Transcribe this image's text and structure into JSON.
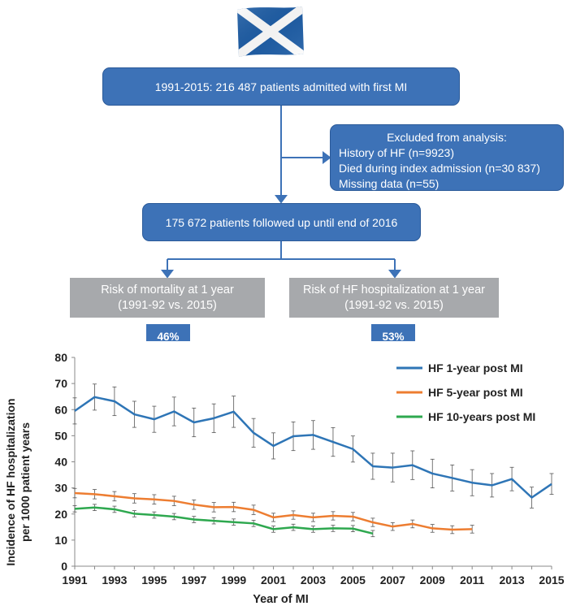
{
  "flow": {
    "top_box": "1991-2015: 216 487 patients admitted with first MI",
    "excluded": {
      "title": "Excluded from analysis:",
      "items": [
        "History of HF (n=9923)",
        "Died during index admission (n=30 837)",
        "Missing data (n=55)"
      ]
    },
    "followed_box": "175 672 patients followed up until end of 2016",
    "left_outcome": {
      "line1": "Risk of mortality at 1 year",
      "line2": "(1991-92 vs. 2015)",
      "reduction": "46%"
    },
    "right_outcome": {
      "line1": "Risk of HF hospitalization at 1 year",
      "line2": "(1991-92 vs. 2015)",
      "reduction": "53%"
    }
  },
  "colors": {
    "box": "#3d72b7",
    "gray": "#a7a9ac",
    "hf1": "#2e75b6",
    "hf5": "#ed7d31",
    "hf10": "#2ea84f"
  },
  "chart_data": {
    "type": "line",
    "xlabel": "Year of MI",
    "ylabel": "Incidence of HF hospitalization per 1000 patient years",
    "ylabel_lines": [
      "Incidence of HF hospitalization",
      "per 1000 patient years"
    ],
    "ylim": [
      0,
      80
    ],
    "yticks": [
      0,
      10,
      20,
      30,
      40,
      50,
      60,
      70,
      80
    ],
    "xlim": [
      1991,
      2015
    ],
    "xticks": [
      1991,
      1993,
      1995,
      1997,
      1999,
      2001,
      2003,
      2005,
      2007,
      2009,
      2011,
      2013,
      2015
    ],
    "grid": false,
    "legend": "top-right",
    "series": [
      {
        "name": "HF 1-year post MI",
        "color": "#2e75b6",
        "x": [
          1991,
          1992,
          1993,
          1994,
          1995,
          1996,
          1997,
          1998,
          1999,
          2000,
          2001,
          2002,
          2003,
          2004,
          2005,
          2006,
          2007,
          2008,
          2009,
          2010,
          2011,
          2012,
          2013,
          2014,
          2015
        ],
        "y": [
          59.5,
          64.8,
          63.2,
          58.2,
          56.3,
          59.3,
          55.1,
          56.7,
          59.2,
          51.1,
          46.1,
          49.8,
          50.3,
          47.6,
          44.9,
          38.3,
          37.8,
          38.7,
          35.5,
          33.8,
          32.0,
          31.0,
          33.4,
          26.3,
          31.5
        ],
        "err": [
          5,
          5,
          5.5,
          5,
          5,
          5.5,
          5.5,
          5.5,
          6,
          5.5,
          5,
          5.5,
          5.5,
          5.5,
          5,
          5,
          5.5,
          5.5,
          5.5,
          5,
          5,
          4.5,
          4.5,
          4,
          4
        ]
      },
      {
        "name": "HF 5-year post MI",
        "color": "#ed7d31",
        "x": [
          1991,
          1992,
          1993,
          1994,
          1995,
          1996,
          1997,
          1998,
          1999,
          2000,
          2001,
          2002,
          2003,
          2004,
          2005,
          2006,
          2007,
          2008,
          2009,
          2010,
          2011
        ],
        "y": [
          28.0,
          27.6,
          26.8,
          26.0,
          25.6,
          25.0,
          23.6,
          22.6,
          22.7,
          21.6,
          18.7,
          19.6,
          18.7,
          19.3,
          19.0,
          16.8,
          15.2,
          16.2,
          14.5,
          14.0,
          14.2
        ],
        "err": [
          1.8,
          1.8,
          1.8,
          1.8,
          1.8,
          1.8,
          1.8,
          1.8,
          1.8,
          1.8,
          1.6,
          1.6,
          1.6,
          1.6,
          1.6,
          1.6,
          1.5,
          1.5,
          1.5,
          1.5,
          1.5
        ]
      },
      {
        "name": "HF 10-years post MI",
        "color": "#2ea84f",
        "x": [
          1991,
          1992,
          1993,
          1994,
          1995,
          1996,
          1997,
          1998,
          1999,
          2000,
          2001,
          2002,
          2003,
          2004,
          2005,
          2006
        ],
        "y": [
          22.0,
          22.5,
          21.8,
          20.1,
          19.6,
          19.0,
          17.9,
          17.4,
          16.9,
          16.4,
          14.2,
          14.9,
          14.2,
          14.5,
          14.4,
          12.5
        ],
        "err": [
          1.2,
          1.2,
          1.2,
          1.2,
          1.2,
          1.2,
          1.2,
          1.2,
          1.2,
          1.2,
          1.2,
          1.2,
          1.2,
          1.2,
          1.2,
          1.2
        ]
      }
    ]
  }
}
